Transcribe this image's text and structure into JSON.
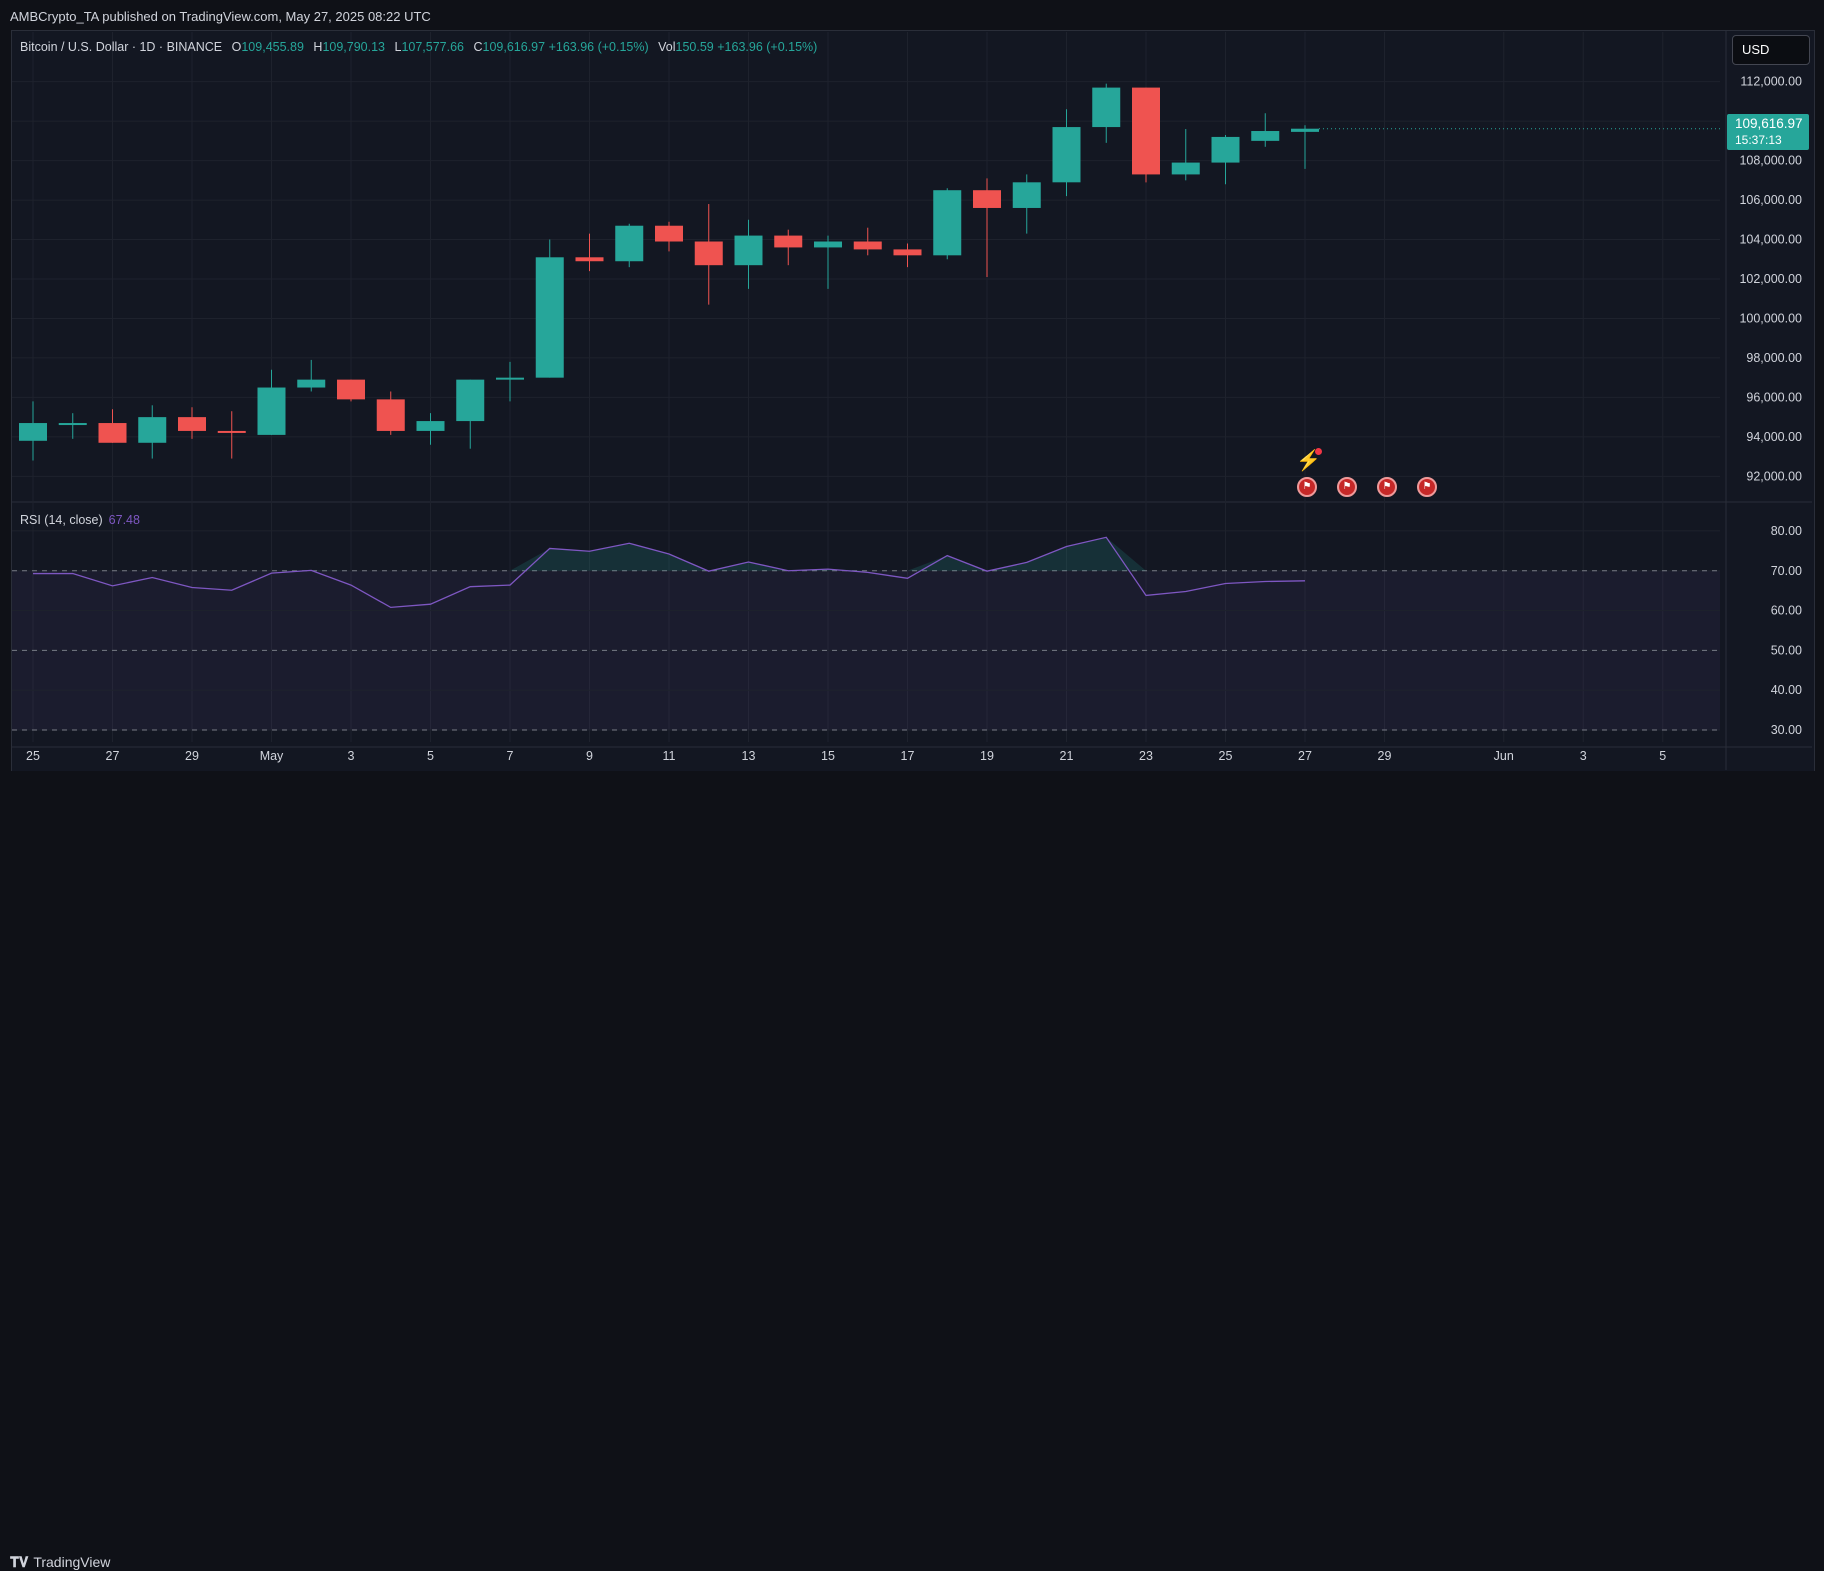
{
  "header": {
    "publisher": "AMBCrypto_TA published on TradingView.com, May 27, 2025 08:22 UTC"
  },
  "legend": {
    "symbol": "Bitcoin / U.S. Dollar · 1D · BINANCE",
    "open_label": "O",
    "open": "109,455.89",
    "high_label": "H",
    "high": "109,790.13",
    "low_label": "L",
    "low": "107,577.66",
    "close_label": "C",
    "close": "109,616.97",
    "change": "+163.96 (+0.15%)",
    "vol_label": "Vol",
    "vol": "150.59",
    "vol_change": "+163.96 (+0.15%)"
  },
  "currency_button": "USD",
  "last_price": {
    "price": "109,616.97",
    "countdown": "15:37:13"
  },
  "rsi": {
    "label": "RSI (14, close)",
    "value": "67.48"
  },
  "footer": {
    "logo_text": "TradingView"
  },
  "colors": {
    "up": "#26a69a",
    "down": "#ef5350",
    "rsi": "#7e57c2",
    "background": "#131722",
    "grid": "#1e222d"
  },
  "icons": {
    "events": "us-flag-icon",
    "bolt": "lightning-icon"
  },
  "chart_data": [
    {
      "type": "candlestick",
      "title": "Bitcoin / U.S. Dollar · 1D · BINANCE",
      "ylim": [
        90800,
        113200
      ],
      "y_ticks": [
        "112,000.00",
        "110,000.00",
        "108,000.00",
        "106,000.00",
        "104,000.00",
        "102,000.00",
        "100,000.00",
        "98,000.00",
        "96,000.00",
        "94,000.00",
        "92,000.00"
      ],
      "y_tick_values": [
        112000,
        110000,
        108000,
        106000,
        104000,
        102000,
        100000,
        98000,
        96000,
        94000,
        92000
      ],
      "x_ticks": [
        {
          "label": "25",
          "day": 0
        },
        {
          "label": "27",
          "day": 2
        },
        {
          "label": "29",
          "day": 4
        },
        {
          "label": "May",
          "day": 6
        },
        {
          "label": "3",
          "day": 8
        },
        {
          "label": "5",
          "day": 10
        },
        {
          "label": "7",
          "day": 12
        },
        {
          "label": "9",
          "day": 14
        },
        {
          "label": "11",
          "day": 16
        },
        {
          "label": "13",
          "day": 18
        },
        {
          "label": "15",
          "day": 20
        },
        {
          "label": "17",
          "day": 22
        },
        {
          "label": "19",
          "day": 24
        },
        {
          "label": "21",
          "day": 26
        },
        {
          "label": "23",
          "day": 28
        },
        {
          "label": "25",
          "day": 30
        },
        {
          "label": "27",
          "day": 32
        },
        {
          "label": "29",
          "day": 34
        },
        {
          "label": "Jun",
          "day": 37
        },
        {
          "label": "3",
          "day": 39
        },
        {
          "label": "5",
          "day": 41
        }
      ],
      "candles": [
        {
          "date": "Apr 25",
          "o": 93800,
          "h": 95800,
          "l": 92800,
          "c": 94700
        },
        {
          "date": "Apr 26",
          "o": 94700,
          "h": 95200,
          "l": 93900,
          "c": 94700
        },
        {
          "date": "Apr 27",
          "o": 94700,
          "h": 95400,
          "l": 93700,
          "c": 93700
        },
        {
          "date": "Apr 28",
          "o": 93700,
          "h": 95600,
          "l": 92900,
          "c": 95000
        },
        {
          "date": "Apr 29",
          "o": 95000,
          "h": 95500,
          "l": 93900,
          "c": 94300
        },
        {
          "date": "Apr 30",
          "o": 94300,
          "h": 95300,
          "l": 92900,
          "c": 94200
        },
        {
          "date": "May 1",
          "o": 94100,
          "h": 97400,
          "l": 94100,
          "c": 96500
        },
        {
          "date": "May 2",
          "o": 96500,
          "h": 97900,
          "l": 96300,
          "c": 96900
        },
        {
          "date": "May 3",
          "o": 96900,
          "h": 96900,
          "l": 95800,
          "c": 95900
        },
        {
          "date": "May 4",
          "o": 95900,
          "h": 96300,
          "l": 94100,
          "c": 94300
        },
        {
          "date": "May 5",
          "o": 94300,
          "h": 95200,
          "l": 93600,
          "c": 94800
        },
        {
          "date": "May 6",
          "o": 94800,
          "h": 96900,
          "l": 93400,
          "c": 96900
        },
        {
          "date": "May 7",
          "o": 96900,
          "h": 97800,
          "l": 95800,
          "c": 97000
        },
        {
          "date": "May 8",
          "o": 97000,
          "h": 104000,
          "l": 97000,
          "c": 103100
        },
        {
          "date": "May 9",
          "o": 103100,
          "h": 104300,
          "l": 102400,
          "c": 102900
        },
        {
          "date": "May 10",
          "o": 102900,
          "h": 104800,
          "l": 102600,
          "c": 104700
        },
        {
          "date": "May 11",
          "o": 104700,
          "h": 104900,
          "l": 103400,
          "c": 103900
        },
        {
          "date": "May 12",
          "o": 103900,
          "h": 105800,
          "l": 100700,
          "c": 102700
        },
        {
          "date": "May 13",
          "o": 102700,
          "h": 105000,
          "l": 101500,
          "c": 104200
        },
        {
          "date": "May 14",
          "o": 104200,
          "h": 104500,
          "l": 102700,
          "c": 103600
        },
        {
          "date": "May 15",
          "o": 103600,
          "h": 104200,
          "l": 101500,
          "c": 103900
        },
        {
          "date": "May 16",
          "o": 103900,
          "h": 104600,
          "l": 103200,
          "c": 103500
        },
        {
          "date": "May 17",
          "o": 103500,
          "h": 103800,
          "l": 102600,
          "c": 103200
        },
        {
          "date": "May 18",
          "o": 103200,
          "h": 106600,
          "l": 103000,
          "c": 106500
        },
        {
          "date": "May 19",
          "o": 106500,
          "h": 107100,
          "l": 102100,
          "c": 105600
        },
        {
          "date": "May 20",
          "o": 105600,
          "h": 107300,
          "l": 104300,
          "c": 106900
        },
        {
          "date": "May 21",
          "o": 106900,
          "h": 110600,
          "l": 106200,
          "c": 109700
        },
        {
          "date": "May 22",
          "o": 109700,
          "h": 111900,
          "l": 108900,
          "c": 111700
        },
        {
          "date": "May 23",
          "o": 111700,
          "h": 111700,
          "l": 106900,
          "c": 107300
        },
        {
          "date": "May 24",
          "o": 107300,
          "h": 109600,
          "l": 107000,
          "c": 107900
        },
        {
          "date": "May 25",
          "o": 107900,
          "h": 109300,
          "l": 106800,
          "c": 109200
        },
        {
          "date": "May 26",
          "o": 109000,
          "h": 110400,
          "l": 108700,
          "c": 109500
        },
        {
          "date": "May 27",
          "o": 109456,
          "h": 109790,
          "l": 107578,
          "c": 109617
        }
      ]
    },
    {
      "type": "line",
      "title": "RSI (14, close)",
      "ylim": [
        27,
        84
      ],
      "y_ticks": [
        "80.00",
        "70.00",
        "60.00",
        "50.00",
        "40.00",
        "30.00"
      ],
      "y_tick_values": [
        80,
        70,
        60,
        50,
        40,
        30
      ],
      "levels": [
        70,
        50,
        30
      ],
      "series": [
        {
          "name": "RSI (14, close)",
          "values": [
            69.3,
            69.3,
            66.2,
            68.3,
            65.8,
            65.1,
            69.4,
            70.1,
            66.4,
            60.8,
            61.6,
            66.0,
            66.4,
            75.6,
            74.9,
            76.9,
            74.2,
            69.9,
            72.2,
            70.0,
            70.4,
            69.6,
            68.1,
            73.8,
            69.9,
            72.1,
            76.1,
            78.4,
            63.8,
            64.8,
            66.8,
            67.3,
            67.48
          ]
        }
      ]
    }
  ]
}
